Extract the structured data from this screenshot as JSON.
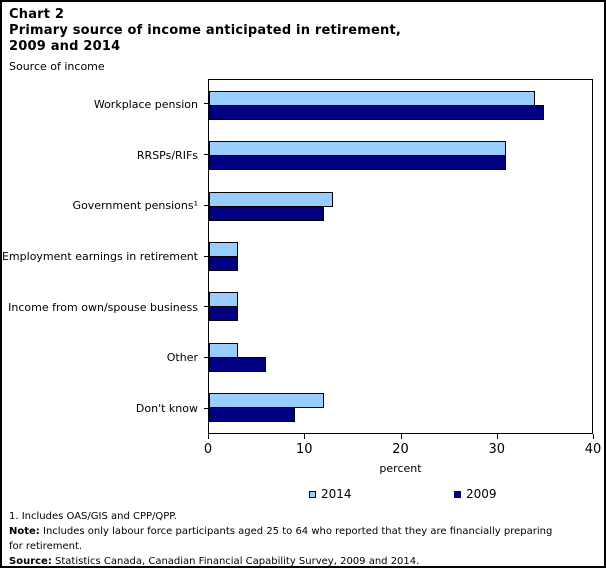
{
  "header": {
    "chart_label": "Chart 2",
    "title_line1": "Primary source of income anticipated in retirement,",
    "title_line2": "2009 and 2014",
    "y_axis_caption": "Source of income"
  },
  "chart_data": {
    "type": "bar",
    "orientation": "horizontal",
    "title": "Chart 2 Primary source of income anticipated in retirement, 2009 and 2014",
    "categories": [
      "Workplace pension",
      "RRSPs/RIFs",
      "Government pensions¹",
      "Employment earnings in retirement",
      "Income from own/spouse business",
      "Other",
      "Don't know"
    ],
    "series": [
      {
        "name": "2014",
        "color": "#99CCFF",
        "values": [
          34,
          31,
          13,
          3,
          3,
          3,
          12
        ]
      },
      {
        "name": "2009",
        "color": "#000080",
        "values": [
          35,
          31,
          12,
          3,
          3,
          6,
          9
        ]
      }
    ],
    "xlabel": "percent",
    "ylabel": "Source of income",
    "xlim": [
      0,
      40
    ],
    "xticks": [
      0,
      10,
      20,
      30,
      40
    ],
    "grid": false,
    "legend_position": "bottom"
  },
  "footnotes": {
    "footnote1": "1. Includes OAS/GIS and CPP/QPP.",
    "note_label": "Note:",
    "note_text": "Includes only labour force participants aged 25 to 64 who reported that they are financially preparing for retirement.",
    "source_label": "Source:",
    "source_text": "Statistics Canada, Canadian Financial Capability Survey, 2009 and 2014."
  }
}
